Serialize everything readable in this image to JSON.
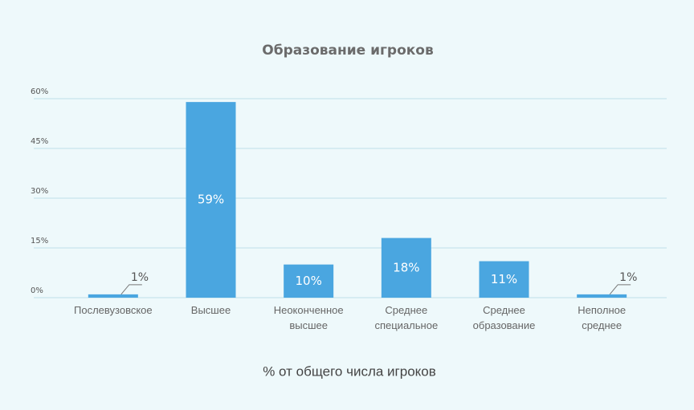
{
  "chart_data": {
    "type": "bar",
    "title": "Образование игроков",
    "x_label": "% от общего числа игроков",
    "categories": [
      "Послевузовское",
      "Высшее",
      "Неоконченное\nвысшее",
      "Среднее\nспециальное",
      "Среднее\nобразование",
      "Неполное\nсреднее"
    ],
    "values": [
      1,
      59,
      10,
      18,
      11,
      1
    ],
    "value_labels": [
      "1%",
      "59%",
      "10%",
      "18%",
      "11%",
      "1%"
    ],
    "color": "#4aa6e0",
    "ylim": [
      0,
      60
    ],
    "yticks": [
      {
        "value": 0,
        "label": "0%"
      },
      {
        "value": 15,
        "label": "15%"
      },
      {
        "value": 30,
        "label": "30%"
      },
      {
        "value": 45,
        "label": "45%"
      },
      {
        "value": 60,
        "label": "60%"
      }
    ],
    "grid": true
  }
}
